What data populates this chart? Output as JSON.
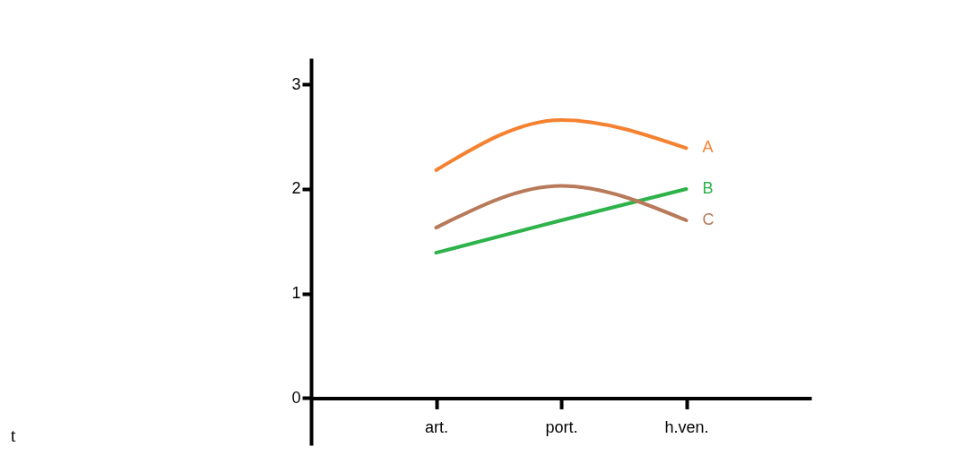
{
  "chart_data": {
    "type": "line",
    "categories": [
      "art.",
      "port.",
      "h.ven."
    ],
    "series": [
      {
        "name": "A",
        "color": "#f58231",
        "values": [
          2.18,
          2.66,
          2.39
        ]
      },
      {
        "name": "B",
        "color": "#2db34a",
        "values": [
          1.39,
          1.7,
          2.0
        ]
      },
      {
        "name": "C",
        "color": "#b87a5a",
        "values": [
          1.63,
          2.03,
          1.7
        ]
      }
    ],
    "ylim": [
      -0.45,
      3.25
    ],
    "yticks": [
      0,
      1,
      2,
      3
    ],
    "grid": false,
    "legend": false,
    "marker": "none",
    "line_style": "solid",
    "annotations": [
      "t"
    ]
  }
}
